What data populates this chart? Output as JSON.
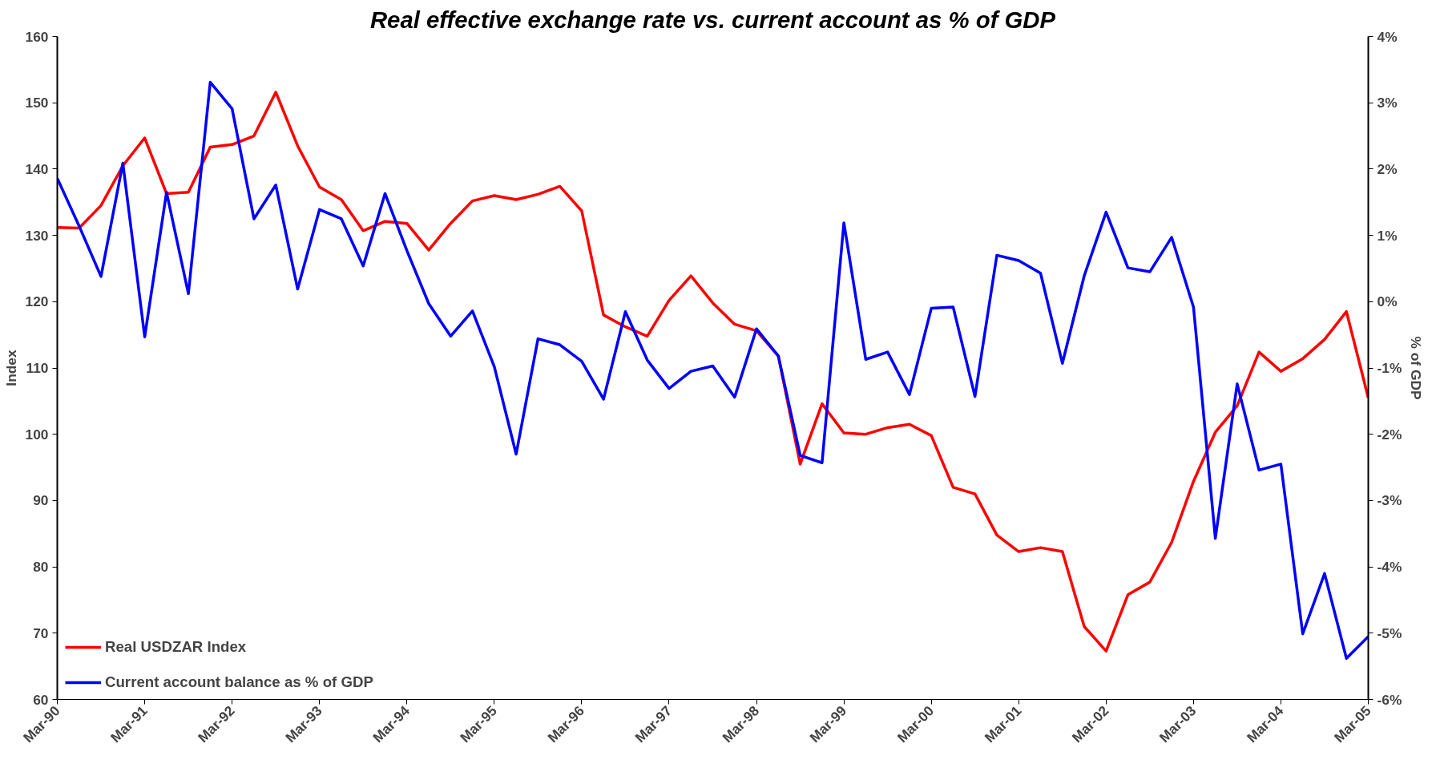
{
  "chart_data": {
    "type": "line",
    "title": "Real effective exchange rate vs. current account as % of GDP",
    "ylabel": "Index",
    "y2label": "% of GDP",
    "categories": [
      "Mar-90",
      null,
      null,
      null,
      "Mar-91",
      null,
      null,
      null,
      "Mar-92",
      null,
      null,
      null,
      "Mar-93",
      null,
      null,
      null,
      "Mar-94",
      null,
      null,
      null,
      "Mar-95",
      null,
      null,
      null,
      "Mar-96",
      null,
      null,
      null,
      "Mar-97",
      null,
      null,
      null,
      "Mar-98",
      null,
      null,
      null,
      "Mar-99",
      null,
      null,
      null,
      "Mar-00",
      null,
      null,
      null,
      "Mar-01",
      null,
      null,
      null,
      "Mar-02",
      null,
      null,
      null,
      "Mar-03",
      null,
      null,
      null,
      "Mar-04",
      null,
      null,
      null,
      "Mar-05"
    ],
    "series": [
      {
        "name": "Real USDZAR Index",
        "color": "#ff0000",
        "values": [
          131.2,
          131.1,
          134.5,
          140.5,
          144.7,
          136.3,
          136.5,
          143.3,
          143.7,
          145,
          151.6,
          143.5,
          137.3,
          135.4,
          130.7,
          132.1,
          131.8,
          127.8,
          131.8,
          135.2,
          136,
          135.4,
          136.2,
          137.4,
          133.7,
          118,
          116.2,
          114.8,
          120.2,
          123.9,
          119.8,
          116.6,
          115.6,
          111.8,
          95.5,
          104.6,
          100.2,
          100,
          101,
          101.5,
          99.8,
          92,
          91,
          84.8,
          82.3,
          82.9,
          82.3,
          71,
          67.3,
          75.8,
          77.7,
          83.7,
          92.9,
          100.3,
          104.3,
          112.4,
          109.5,
          111.4,
          114.3,
          118.5,
          105.5
        ]
      },
      {
        "name": "Current account balance as % of GDP",
        "color": "#0000ff",
        "axis": "y2",
        "values": [
          1.86,
          1.14,
          0.38,
          2.09,
          -0.53,
          1.65,
          0.12,
          3.31,
          2.91,
          1.25,
          1.76,
          0.19,
          1.39,
          1.25,
          0.54,
          1.63,
          0.77,
          -0.03,
          -0.52,
          -0.14,
          -0.98,
          -2.3,
          -0.56,
          -0.65,
          -0.9,
          -1.47,
          -0.15,
          -0.88,
          -1.31,
          -1.05,
          -0.97,
          -1.44,
          -0.41,
          -0.82,
          -2.32,
          -2.43,
          1.19,
          -0.87,
          -0.76,
          -1.4,
          -0.1,
          -0.08,
          -1.43,
          0.7,
          0.62,
          0.43,
          -0.93,
          0.39,
          1.35,
          0.51,
          0.45,
          0.97,
          -0.08,
          -3.57,
          -1.24,
          -2.54,
          -2.45,
          -5.01,
          -4.1,
          -5.38,
          -5.05
        ]
      }
    ],
    "ylim": [
      60,
      160
    ],
    "yticks": [
      60,
      70,
      80,
      90,
      100,
      110,
      120,
      130,
      140,
      150,
      160
    ],
    "y2lim": [
      -6,
      4
    ],
    "y2ticks": [
      {
        "value": -6,
        "label": "-6%"
      },
      {
        "value": -5,
        "label": "-5%"
      },
      {
        "value": -4,
        "label": "-4%"
      },
      {
        "value": -3,
        "label": "-3%"
      },
      {
        "value": -2,
        "label": "-2%"
      },
      {
        "value": -1,
        "label": "-1%"
      },
      {
        "value": 0,
        "label": "0%"
      },
      {
        "value": 1,
        "label": "1%"
      },
      {
        "value": 2,
        "label": "2%"
      },
      {
        "value": 3,
        "label": "3%"
      },
      {
        "value": 4,
        "label": "4%"
      }
    ],
    "grid": false,
    "legend": "bottom left",
    "line_style": "solid"
  }
}
